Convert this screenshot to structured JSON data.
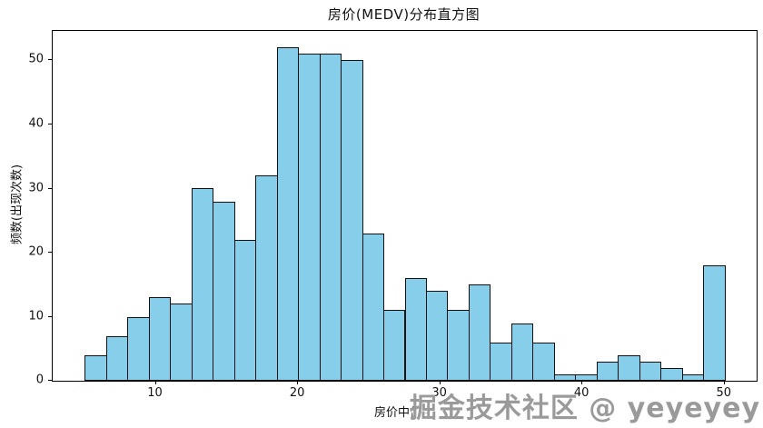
{
  "chart": {
    "title": "房价(MEDV)分布直方图",
    "xlabel": "房价中位数",
    "ylabel": "频数(出现次数)"
  },
  "watermark": {
    "text": "掘金技术社区 @ yeyeyey",
    "color": "#9a9a9a"
  },
  "chart_data": {
    "type": "bar",
    "subtype": "histogram",
    "title": "房价(MEDV)分布直方图",
    "xlabel": "房价中位数",
    "ylabel": "频数(出现次数)",
    "bin_edges": [
      5,
      6.5,
      8,
      9.5,
      11,
      12.5,
      14,
      15.5,
      17,
      18.5,
      20,
      21.5,
      23,
      24.5,
      26,
      27.5,
      29,
      30.5,
      32,
      33.5,
      35,
      36.5,
      38,
      39.5,
      41,
      42.5,
      44,
      45.5,
      47,
      48.5,
      50
    ],
    "counts": [
      4,
      7,
      10,
      13,
      12,
      30,
      28,
      22,
      32,
      52,
      51,
      51,
      50,
      23,
      11,
      16,
      14,
      11,
      15,
      6,
      9,
      6,
      1,
      1,
      3,
      4,
      3,
      2,
      1,
      18
    ],
    "total_count": 506,
    "bar_color": "#87CEEB",
    "bar_edge_color": "#111111",
    "xlim": [
      2.75,
      52.25
    ],
    "ylim": [
      0,
      54.6
    ],
    "xticks": [
      10,
      20,
      30,
      40,
      50
    ],
    "yticks": [
      0,
      10,
      20,
      30,
      40,
      50
    ],
    "grid": false,
    "legend": null
  }
}
